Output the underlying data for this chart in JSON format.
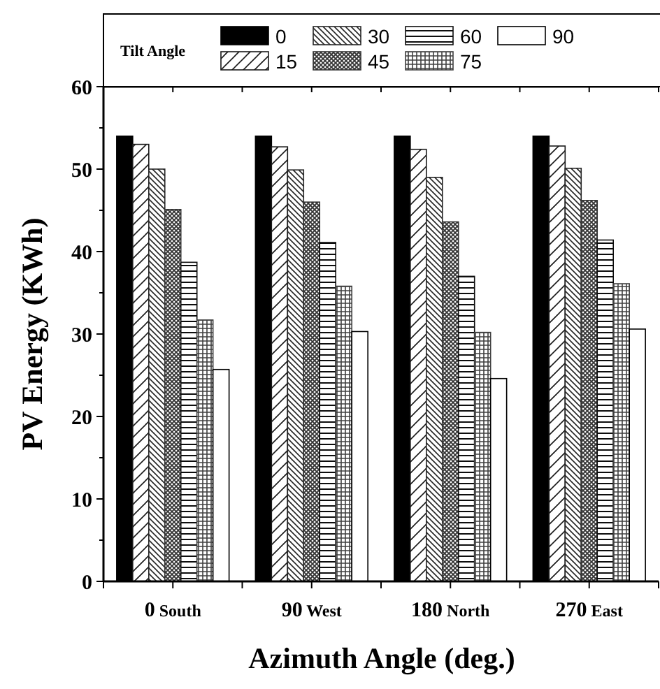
{
  "chart_data": {
    "type": "bar",
    "xlabel": "Azimuth Angle (deg.)",
    "ylabel": "PV Energy (KWh)",
    "legend_title": "Tilt Angle",
    "legend": "top",
    "categories": [
      "0 South",
      "90 West",
      "180 North",
      "270 East"
    ],
    "ylim": [
      0,
      60
    ],
    "yticks": [
      0,
      {
        "value": 5,
        "label": null
      },
      10,
      {
        "value": 15,
        "label": null
      },
      20,
      {
        "value": 25,
        "label": null
      },
      30,
      {
        "value": 35,
        "label": null
      },
      40,
      {
        "value": 45,
        "label": null
      },
      50,
      {
        "value": 55,
        "label": null
      },
      60
    ],
    "series": [
      {
        "name": "0",
        "color": "#000000",
        "values": [
          54,
          54,
          54,
          54
        ]
      },
      {
        "name": "15",
        "color": "#1a1a1a",
        "values": [
          53.0,
          52.7,
          52.4,
          52.8
        ]
      },
      {
        "name": "30",
        "color": "#262626",
        "values": [
          50.0,
          49.9,
          49.0,
          50.1
        ]
      },
      {
        "name": "45",
        "color": "#333333",
        "values": [
          45.1,
          46.0,
          43.6,
          46.2
        ]
      },
      {
        "name": "60",
        "color": "#0d0d0d",
        "values": [
          38.7,
          41.1,
          37.0,
          41.4
        ]
      },
      {
        "name": "75",
        "color": "#404040",
        "values": [
          31.7,
          35.8,
          30.2,
          36.1
        ]
      },
      {
        "name": "90",
        "color": "#ffffff",
        "values": [
          25.7,
          30.3,
          24.6,
          30.6
        ]
      }
    ]
  }
}
